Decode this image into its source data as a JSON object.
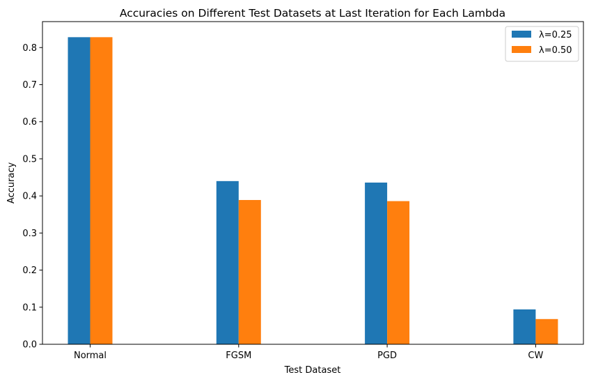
{
  "chart_data": {
    "type": "bar",
    "title": "Accuracies on Different Test Datasets at Last Iteration for Each Lambda",
    "xlabel": "Test Dataset",
    "ylabel": "Accuracy",
    "categories": [
      "Normal",
      "FGSM",
      "PGD",
      "CW"
    ],
    "series": [
      {
        "name": "λ=0.25",
        "color": "#1f77b4",
        "values": [
          0.828,
          0.44,
          0.436,
          0.094
        ]
      },
      {
        "name": "λ=0.50",
        "color": "#ff7f0e",
        "values": [
          0.828,
          0.389,
          0.386,
          0.068
        ]
      }
    ],
    "ylim": [
      0,
      0.87
    ],
    "yticks": [
      0.0,
      0.1,
      0.2,
      0.3,
      0.4,
      0.5,
      0.6,
      0.7,
      0.8
    ],
    "ytick_labels": [
      "0.0",
      "0.1",
      "0.2",
      "0.3",
      "0.4",
      "0.5",
      "0.6",
      "0.7",
      "0.8"
    ],
    "grid": false,
    "legend_position": "top-right"
  }
}
